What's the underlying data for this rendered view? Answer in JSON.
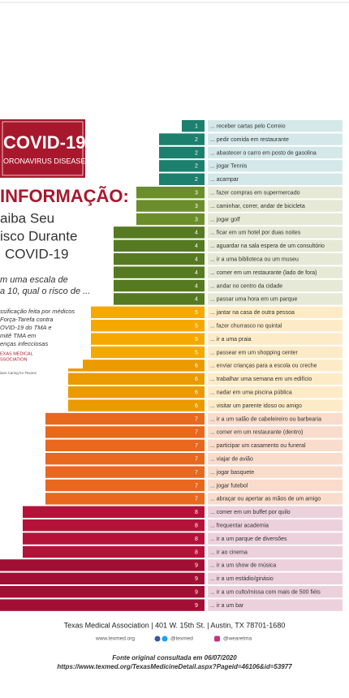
{
  "chart_data": {
    "type": "bar",
    "categories": [
      "... receber cartas pelo Correio",
      "... pedir comida em restaurante",
      "... abastecer o carro em posto de gasolina",
      "... jogar Tennis",
      "... acampar",
      "... fazer compras em supermercado",
      "... caminhar, correr, andar de bicicleta",
      "... jogar golf",
      "... ficar em um hotel por duas noites",
      "... aguardar na sala espera de um consultório",
      "... ir a uma biblioteca ou um museu",
      "... comer em um restaurante (lado de fora)",
      "... andar no centro da cidade",
      "... passar uma hora em um parque",
      "... jantar na casa de outra pessoa",
      "... fazer churrasco no quintal",
      "... ir a uma praia",
      "... passear em um shopping center",
      "... enviar crianças para a escola ou creche",
      "... trabalhar uma semana em um edifício",
      "... nadar em uma piscina pública",
      "... visitar um parente idoso ou amigo",
      "... ir a um salão de cabeleireiro ou barbearia",
      "... comer em um restaurante (dentro)",
      "... participar um casamento ou funeral",
      "... viajar de avião",
      "... jogar basquete",
      "... jogar futebol",
      "... abraçar ou apertar as mãos de um amigo",
      "... comer em um buffet por quilo",
      "... frequentar academia",
      "... ir a um parque de diversões",
      "... ir ao cinema",
      "... ir a um show de música",
      "... ir a um estádio/ginásio",
      "... ir a um culto/missa com mais de 500 fiéis",
      "... ir a um bar"
    ],
    "values": [
      1,
      2,
      2,
      2,
      2,
      3,
      3,
      3,
      4,
      4,
      4,
      4,
      4,
      4,
      5,
      5,
      5,
      5,
      6,
      6,
      6,
      6,
      7,
      7,
      7,
      7,
      7,
      7,
      7,
      8,
      8,
      8,
      8,
      9,
      9,
      9,
      9
    ],
    "colors": [
      "#1d7f6e",
      "#1d7f6e",
      "#1d7f6e",
      "#1d7f6e",
      "#1d7f6e",
      "#6b8e2a",
      "#6b8e2a",
      "#6b8e2a",
      "#557a22",
      "#557a22",
      "#557a22",
      "#557a22",
      "#557a22",
      "#557a22",
      "#f5a800",
      "#f5a800",
      "#f5a800",
      "#f5a800",
      "#eb9a00",
      "#eb9a00",
      "#eb9a00",
      "#eb9a00",
      "#e8681e",
      "#e8681e",
      "#e8681e",
      "#e8681e",
      "#e8681e",
      "#e8681e",
      "#e8681e",
      "#b5123a",
      "#b5123a",
      "#b5123a",
      "#b5123a",
      "#a30f34",
      "#a30f34",
      "#a30f34",
      "#a30f34"
    ],
    "label_backgrounds": [
      "#d5e8e9",
      "#d5e8e9",
      "#d5e8e9",
      "#d5e8e9",
      "#d5e8e9",
      "#e5e9d6",
      "#e5e9d6",
      "#e5e9d6",
      "#e5e9d6",
      "#e5e9d6",
      "#e5e9d6",
      "#e5e9d6",
      "#e5e9d6",
      "#e5e9d6",
      "#fdebc8",
      "#fdebc8",
      "#fdebc8",
      "#fdebc8",
      "#fdebc8",
      "#fdebc8",
      "#fdebc8",
      "#fdebc8",
      "#f9dccb",
      "#f9dccb",
      "#f9dccb",
      "#f9dccb",
      "#f9dccb",
      "#f9dccb",
      "#f9dccb",
      "#ecd1dc",
      "#ecd1dc",
      "#ecd1dc",
      "#ecd1dc",
      "#ecd1dc",
      "#ecd1dc",
      "#ecd1dc",
      "#ecd1dc"
    ]
  },
  "panel": {
    "badge_title": "COVID-19",
    "badge_subtitle": "ORONAVIRUS DISEASE",
    "heading": "INFORMAÇÃO:",
    "subheading": [
      "aiba Seu",
      "isco Durante",
      "COVID-19"
    ],
    "question": [
      "m uma escala de",
      "a 10, qual o risco de ..."
    ],
    "note": [
      "ssificação feita por médicos",
      "Força-Tarefa contra",
      "OVID-19 do TMA e",
      "mitê TMA em",
      "enças infecciosas"
    ],
    "logo": [
      "EXAS MEDICAL",
      "SSOCIATION"
    ],
    "logo_tagline": "ians Caring for Texans"
  },
  "footer": {
    "address": "Texas Medical Association  |  401 W. 15th St.  |  Austin, TX 78701-1680",
    "website": "www.texmed.org",
    "social": "@texmed",
    "instagram": "@wearetma",
    "source": [
      "Fonte original consultada em 06/07/2020",
      "https://www.texmed.org/TexasMedicineDetail.aspx?Pageid=46106&id=53977"
    ]
  }
}
